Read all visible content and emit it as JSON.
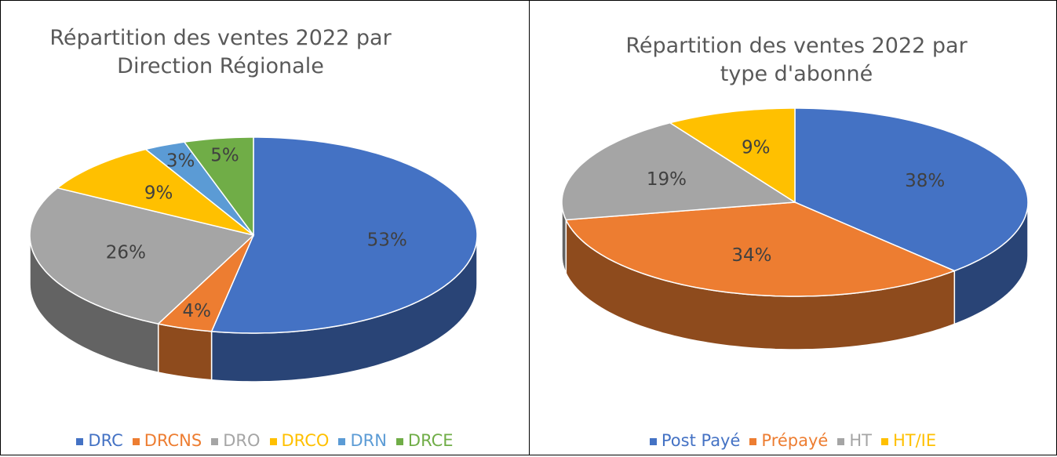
{
  "chart_data": [
    {
      "type": "pie",
      "title": "Répartition des ventes 2022 par Direction Régionale",
      "categories": [
        "DRC",
        "DRCNS",
        "DRO",
        "DRCO",
        "DRN",
        "DRCE"
      ],
      "values": [
        53,
        4,
        26,
        9,
        3,
        5
      ],
      "value_labels": [
        "53%",
        "4%",
        "26%",
        "9%",
        "3%",
        "5%"
      ],
      "colors": [
        "#4472c4",
        "#ed7d31",
        "#a5a5a5",
        "#ffc000",
        "#5b9bd5",
        "#70ad47"
      ],
      "legend": "bottom"
    },
    {
      "type": "pie",
      "title": "Répartition des ventes 2022 par type d'abonné",
      "categories": [
        "Post Payé",
        "Prépayé",
        "HT",
        "HT/IE"
      ],
      "values": [
        38,
        34,
        19,
        9
      ],
      "value_labels": [
        "38%",
        "34%",
        "19%",
        "9%"
      ],
      "colors": [
        "#4472c4",
        "#ed7d31",
        "#a5a5a5",
        "#ffc000"
      ],
      "legend": "bottom"
    }
  ]
}
